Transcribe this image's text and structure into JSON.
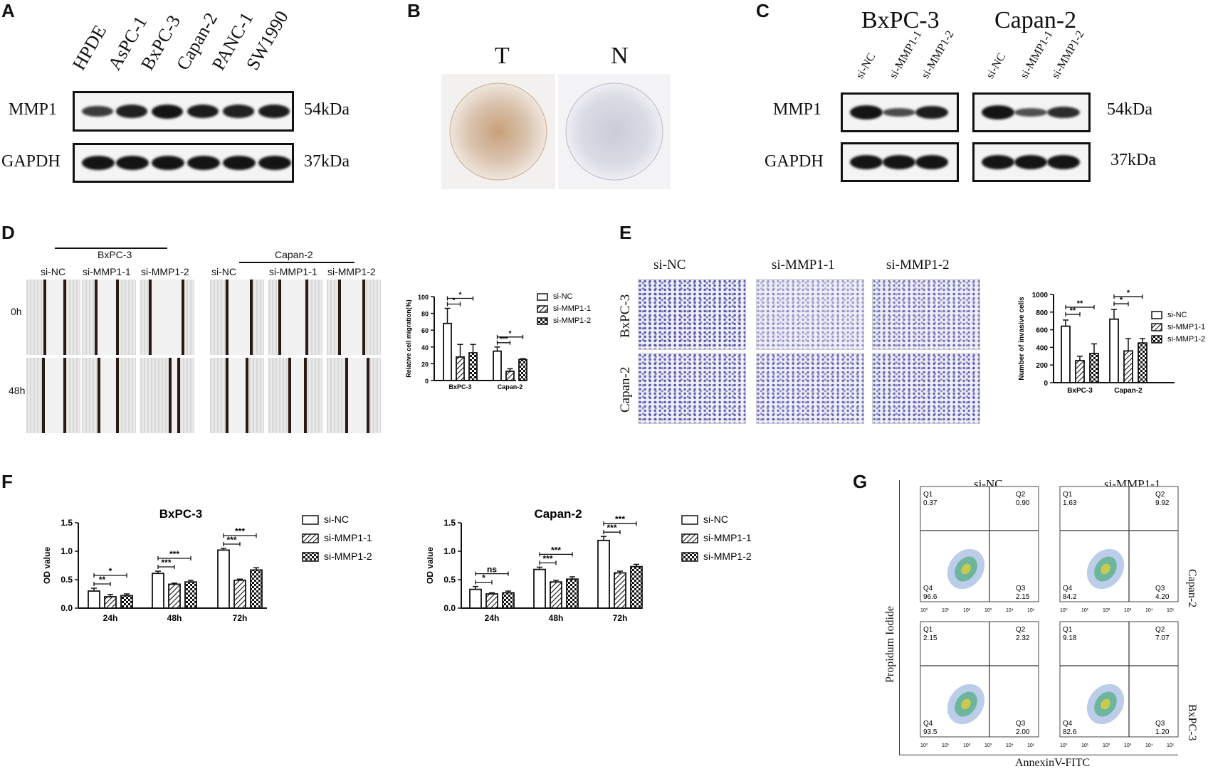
{
  "panels": {
    "A": "A",
    "B": "B",
    "C": "C",
    "D": "D",
    "E": "E",
    "F": "F",
    "G": "G"
  },
  "panelA": {
    "lanes": [
      "HPDE",
      "AsPC-1",
      "BxPC-3",
      "Capan-2",
      "PANC-1",
      "SW1990"
    ],
    "rows": [
      {
        "name": "MMP1",
        "mw": "54kDa",
        "intensity": [
          0.55,
          0.85,
          1.0,
          0.9,
          0.85,
          0.9
        ]
      },
      {
        "name": "GAPDH",
        "mw": "37kDa",
        "intensity": [
          1,
          1,
          1,
          1,
          1,
          1
        ]
      }
    ]
  },
  "panelB": {
    "labels": [
      "T",
      "N"
    ]
  },
  "panelC": {
    "cells": [
      "BxPC-3",
      "Capan-2"
    ],
    "lanes": [
      "si-NC",
      "si-MMP1-1",
      "si-MMP1-2"
    ],
    "rows": [
      {
        "name": "MMP1",
        "mw": "54kDa"
      },
      {
        "name": "GAPDH",
        "mw": "37kDa"
      }
    ]
  },
  "panelD": {
    "groups": [
      "BxPC-3",
      "Capan-2"
    ],
    "lanes": [
      "si-NC",
      "si-MMP1-1",
      "si-MMP1-2"
    ],
    "times": [
      "0h",
      "48h"
    ]
  },
  "panelE": {
    "lanes": [
      "si-NC",
      "si-MMP1-1",
      "si-MMP1-2"
    ],
    "rows": [
      "BxPC-3",
      "Capan-2"
    ]
  },
  "panelG": {
    "cols": [
      "si-NC",
      "si-MMP1-1"
    ],
    "rows": [
      "Capan-2",
      "BxPC-3"
    ],
    "xlabel": "AnnexinV-FITC",
    "ylabel": "Propidum Iodide",
    "quadrants": [
      [
        {
          "Q1": "0.37",
          "Q2": "0.90",
          "Q4": "96.6",
          "Q3": "2.15"
        },
        {
          "Q1": "1.63",
          "Q2": "9.92",
          "Q4": "84.2",
          "Q3": "4.20"
        }
      ],
      [
        {
          "Q1": "2.15",
          "Q2": "2.32",
          "Q4": "93.5",
          "Q3": "2.00"
        },
        {
          "Q1": "9.18",
          "Q2": "7.07",
          "Q4": "82.6",
          "Q3": "1.20"
        }
      ]
    ],
    "qnames": [
      "Q1",
      "Q2",
      "Q3",
      "Q4"
    ],
    "ticks": [
      "10⁰",
      "10¹",
      "10²",
      "10³",
      "10⁴",
      "10⁵"
    ]
  },
  "chart_data": [
    {
      "type": "bar",
      "panel": "D",
      "categories": [
        "BxPC-3",
        "Capan-2"
      ],
      "series": [
        {
          "name": "si-NC",
          "values": [
            68,
            35
          ],
          "err": [
            18,
            5
          ]
        },
        {
          "name": "si-MMP1-1",
          "values": [
            28,
            11
          ],
          "err": [
            15,
            3
          ]
        },
        {
          "name": "si-MMP1-2",
          "values": [
            33,
            25
          ],
          "err": [
            10,
            1
          ]
        }
      ],
      "ylabel": "Relative cell migration(%)",
      "ylim": [
        0,
        100
      ],
      "yticks": [
        "0",
        "20",
        "40",
        "60",
        "80",
        "100"
      ],
      "sig": [
        [
          "*",
          "*"
        ],
        [
          "***",
          "*"
        ]
      ]
    },
    {
      "type": "bar",
      "panel": "E",
      "categories": [
        "BxPC-3",
        "Capan-2"
      ],
      "series": [
        {
          "name": "si-NC",
          "values": [
            640,
            720
          ],
          "err": [
            70,
            110
          ]
        },
        {
          "name": "si-MMP1-1",
          "values": [
            250,
            360
          ],
          "err": [
            50,
            140
          ]
        },
        {
          "name": "si-MMP1-2",
          "values": [
            330,
            450
          ],
          "err": [
            110,
            50
          ]
        }
      ],
      "ylabel": "Number of invasive cells",
      "ylim": [
        0,
        1000
      ],
      "yticks": [
        "0",
        "200",
        "400",
        "600",
        "800",
        "1000"
      ],
      "sig": [
        [
          "**",
          "**"
        ],
        [
          "*",
          "*"
        ]
      ]
    },
    {
      "type": "bar",
      "panel": "F",
      "title": "BxPC-3",
      "categories": [
        "24h",
        "48h",
        "72h"
      ],
      "series": [
        {
          "name": "si-NC",
          "values": [
            0.3,
            0.61,
            1.02
          ],
          "err": [
            0.05,
            0.04,
            0.03
          ]
        },
        {
          "name": "si-MMP1-1",
          "values": [
            0.2,
            0.42,
            0.49
          ],
          "err": [
            0.04,
            0.02,
            0.02
          ]
        },
        {
          "name": "si-MMP1-2",
          "values": [
            0.22,
            0.46,
            0.67
          ],
          "err": [
            0.03,
            0.03,
            0.04
          ]
        }
      ],
      "ylabel": "OD value",
      "ylim": [
        0,
        1.5
      ],
      "yticks": [
        "0.0",
        "0.5",
        "1.0",
        "1.5"
      ],
      "sig": [
        [
          "**",
          "*"
        ],
        [
          "***",
          "***"
        ],
        [
          "***",
          "***"
        ]
      ]
    },
    {
      "type": "bar",
      "panel": "F",
      "title": "Capan-2",
      "categories": [
        "24h",
        "48h",
        "72h"
      ],
      "series": [
        {
          "name": "si-NC",
          "values": [
            0.33,
            0.68,
            1.19
          ],
          "err": [
            0.05,
            0.04,
            0.07
          ]
        },
        {
          "name": "si-MMP1-1",
          "values": [
            0.25,
            0.46,
            0.62
          ],
          "err": [
            0.02,
            0.03,
            0.03
          ]
        },
        {
          "name": "si-MMP1-2",
          "values": [
            0.27,
            0.51,
            0.73
          ],
          "err": [
            0.03,
            0.04,
            0.04
          ]
        }
      ],
      "ylabel": "OD value",
      "ylim": [
        0,
        1.5
      ],
      "yticks": [
        "0.0",
        "0.5",
        "1.0",
        "1.5"
      ],
      "sig": [
        [
          "*",
          "ns"
        ],
        [
          "***",
          "***"
        ],
        [
          "***",
          "***"
        ]
      ]
    }
  ]
}
